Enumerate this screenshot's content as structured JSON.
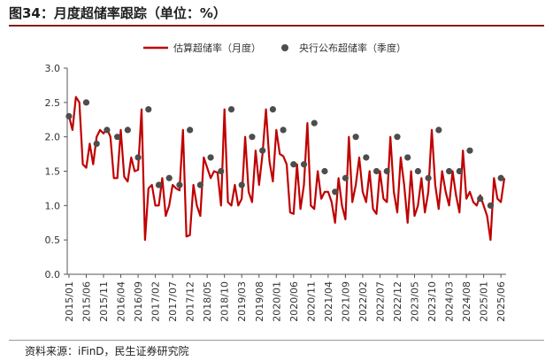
{
  "title": "图34：月度超储率跟踪（单位：%）",
  "source": "资料来源：iFinD，民生证券研究院",
  "colors": {
    "line": "#c00000",
    "marker": "#4d4d4d",
    "accent": "#8b1a1a"
  },
  "chart_data": {
    "type": "line",
    "ylim": [
      0,
      3.0
    ],
    "yticks": [
      "0.0",
      "0.5",
      "1.0",
      "1.5",
      "2.0",
      "2.5",
      "3.0"
    ],
    "xticks": [
      "2015/01",
      "2015/06",
      "2015/11",
      "2016/04",
      "2016/09",
      "2017/02",
      "2017/07",
      "2017/12",
      "2018/05",
      "2018/10",
      "2019/03",
      "2019/08",
      "2020/01",
      "2020/06",
      "2020/11",
      "2021/04",
      "2021/09",
      "2022/02",
      "2022/07",
      "2022/12",
      "2023/05",
      "2023/10",
      "2024/03",
      "2024/08",
      "2025/01",
      "2025/06"
    ],
    "legend_position": "top",
    "series": [
      {
        "name": "估算超储率（月度）",
        "style": "line",
        "start": "2015/01",
        "values": [
          2.3,
          2.1,
          2.58,
          2.5,
          1.6,
          1.55,
          1.9,
          1.6,
          2.0,
          2.1,
          2.05,
          2.12,
          2.0,
          1.4,
          1.4,
          2.1,
          1.42,
          1.35,
          1.7,
          1.5,
          1.52,
          2.4,
          0.5,
          1.25,
          1.3,
          1.0,
          1.0,
          1.4,
          0.85,
          1.0,
          1.3,
          1.25,
          1.22,
          2.1,
          0.55,
          0.57,
          1.3,
          1.0,
          0.85,
          1.7,
          1.55,
          1.4,
          1.5,
          1.48,
          1.0,
          2.4,
          1.05,
          1.0,
          1.3,
          1.0,
          1.1,
          2.0,
          1.2,
          1.05,
          1.8,
          1.3,
          1.75,
          2.4,
          1.65,
          1.35,
          2.1,
          1.75,
          1.72,
          1.6,
          0.9,
          0.88,
          1.6,
          0.95,
          1.3,
          2.2,
          1.0,
          0.95,
          1.5,
          1.1,
          1.2,
          1.2,
          1.05,
          0.75,
          1.4,
          1.0,
          0.8,
          2.0,
          1.05,
          1.3,
          1.7,
          1.2,
          1.05,
          1.5,
          0.95,
          0.88,
          1.5,
          1.1,
          1.05,
          2.0,
          1.2,
          0.9,
          1.7,
          1.3,
          0.75,
          1.5,
          0.85,
          1.0,
          1.4,
          0.9,
          1.2,
          2.1,
          1.3,
          0.95,
          1.5,
          1.2,
          1.0,
          1.5,
          1.15,
          0.9,
          1.8,
          1.1,
          1.2,
          1.05,
          1.0,
          1.15,
          1.0,
          0.85,
          0.5,
          1.4,
          1.1,
          1.05,
          1.4
        ]
      },
      {
        "name": "央行公布超储率（季度）",
        "style": "marker",
        "points": [
          [
            "2015/01",
            2.3
          ],
          [
            "2015/06",
            2.5
          ],
          [
            "2015/09",
            1.9
          ],
          [
            "2015/12",
            2.1
          ],
          [
            "2016/03",
            2.0
          ],
          [
            "2016/06",
            2.1
          ],
          [
            "2016/09",
            1.7
          ],
          [
            "2016/12",
            2.4
          ],
          [
            "2017/03",
            1.3
          ],
          [
            "2017/06",
            1.4
          ],
          [
            "2017/09",
            1.3
          ],
          [
            "2017/12",
            2.1
          ],
          [
            "2018/03",
            1.3
          ],
          [
            "2018/06",
            1.7
          ],
          [
            "2018/09",
            1.5
          ],
          [
            "2018/12",
            2.4
          ],
          [
            "2019/03",
            1.3
          ],
          [
            "2019/06",
            2.0
          ],
          [
            "2019/09",
            1.8
          ],
          [
            "2019/12",
            2.4
          ],
          [
            "2020/03",
            2.1
          ],
          [
            "2020/06",
            1.6
          ],
          [
            "2020/09",
            1.6
          ],
          [
            "2020/12",
            2.2
          ],
          [
            "2021/03",
            1.5
          ],
          [
            "2021/06",
            1.2
          ],
          [
            "2021/09",
            1.4
          ],
          [
            "2021/12",
            2.0
          ],
          [
            "2022/03",
            1.7
          ],
          [
            "2022/06",
            1.5
          ],
          [
            "2022/09",
            1.5
          ],
          [
            "2022/12",
            2.0
          ],
          [
            "2023/03",
            1.7
          ],
          [
            "2023/06",
            1.5
          ],
          [
            "2023/09",
            1.4
          ],
          [
            "2023/12",
            2.1
          ],
          [
            "2024/03",
            1.5
          ],
          [
            "2024/06",
            1.5
          ],
          [
            "2024/09",
            1.8
          ],
          [
            "2024/12",
            1.1
          ],
          [
            "2025/03",
            1.0
          ],
          [
            "2025/06",
            1.4
          ]
        ]
      }
    ]
  }
}
